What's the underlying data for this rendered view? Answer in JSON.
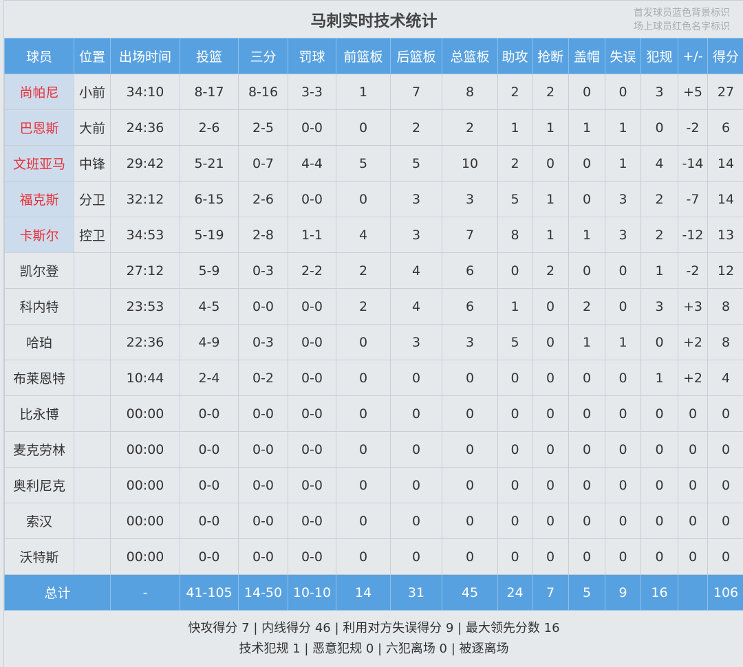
{
  "title": "马刺实时技术统计",
  "legend": [
    "首发球员蓝色背景标识",
    "场上球员红色名字标识"
  ],
  "colors": {
    "header_bg": "#58a1e0",
    "starter_bg": "#cddcec",
    "oncourt_name": "#e8323c"
  },
  "columns": [
    "球员",
    "位置",
    "出场时间",
    "投篮",
    "三分",
    "罚球",
    "前篮板",
    "后篮板",
    "总篮板",
    "助攻",
    "抢断",
    "盖帽",
    "失误",
    "犯规",
    "+/-",
    "得分"
  ],
  "players": [
    {
      "starter": true,
      "oncourt": true,
      "cells": [
        "尚帕尼",
        "小前",
        "34:10",
        "8-17",
        "8-16",
        "3-3",
        "1",
        "7",
        "8",
        "2",
        "2",
        "0",
        "0",
        "3",
        "+5",
        "27"
      ]
    },
    {
      "starter": true,
      "oncourt": true,
      "cells": [
        "巴恩斯",
        "大前",
        "24:36",
        "2-6",
        "2-5",
        "0-0",
        "0",
        "2",
        "2",
        "1",
        "1",
        "1",
        "1",
        "0",
        "-2",
        "6"
      ]
    },
    {
      "starter": true,
      "oncourt": true,
      "cells": [
        "文班亚马",
        "中锋",
        "29:42",
        "5-21",
        "0-7",
        "4-4",
        "5",
        "5",
        "10",
        "2",
        "0",
        "0",
        "1",
        "4",
        "-14",
        "14"
      ]
    },
    {
      "starter": true,
      "oncourt": true,
      "cells": [
        "福克斯",
        "分卫",
        "32:12",
        "6-15",
        "2-6",
        "0-0",
        "0",
        "3",
        "3",
        "5",
        "1",
        "0",
        "3",
        "2",
        "-7",
        "14"
      ]
    },
    {
      "starter": true,
      "oncourt": true,
      "cells": [
        "卡斯尔",
        "控卫",
        "34:53",
        "5-19",
        "2-8",
        "1-1",
        "4",
        "3",
        "7",
        "8",
        "1",
        "1",
        "3",
        "2",
        "-12",
        "13"
      ]
    },
    {
      "starter": false,
      "oncourt": false,
      "cells": [
        "凯尔登",
        "",
        "27:12",
        "5-9",
        "0-3",
        "2-2",
        "2",
        "4",
        "6",
        "0",
        "2",
        "0",
        "0",
        "1",
        "-2",
        "12"
      ]
    },
    {
      "starter": false,
      "oncourt": false,
      "cells": [
        "科内特",
        "",
        "23:53",
        "4-5",
        "0-0",
        "0-0",
        "2",
        "4",
        "6",
        "1",
        "0",
        "2",
        "0",
        "3",
        "+3",
        "8"
      ]
    },
    {
      "starter": false,
      "oncourt": false,
      "cells": [
        "哈珀",
        "",
        "22:36",
        "4-9",
        "0-3",
        "0-0",
        "0",
        "3",
        "3",
        "5",
        "0",
        "1",
        "1",
        "0",
        "+2",
        "8"
      ]
    },
    {
      "starter": false,
      "oncourt": false,
      "cells": [
        "布莱恩特",
        "",
        "10:44",
        "2-4",
        "0-2",
        "0-0",
        "0",
        "0",
        "0",
        "0",
        "0",
        "0",
        "0",
        "1",
        "+2",
        "4"
      ]
    },
    {
      "starter": false,
      "oncourt": false,
      "cells": [
        "比永博",
        "",
        "00:00",
        "0-0",
        "0-0",
        "0-0",
        "0",
        "0",
        "0",
        "0",
        "0",
        "0",
        "0",
        "0",
        "0",
        "0"
      ]
    },
    {
      "starter": false,
      "oncourt": false,
      "cells": [
        "麦克劳林",
        "",
        "00:00",
        "0-0",
        "0-0",
        "0-0",
        "0",
        "0",
        "0",
        "0",
        "0",
        "0",
        "0",
        "0",
        "0",
        "0"
      ]
    },
    {
      "starter": false,
      "oncourt": false,
      "cells": [
        "奥利尼克",
        "",
        "00:00",
        "0-0",
        "0-0",
        "0-0",
        "0",
        "0",
        "0",
        "0",
        "0",
        "0",
        "0",
        "0",
        "0",
        "0"
      ]
    },
    {
      "starter": false,
      "oncourt": false,
      "cells": [
        "索汉",
        "",
        "00:00",
        "0-0",
        "0-0",
        "0-0",
        "0",
        "0",
        "0",
        "0",
        "0",
        "0",
        "0",
        "0",
        "0",
        "0"
      ]
    },
    {
      "starter": false,
      "oncourt": false,
      "cells": [
        "沃特斯",
        "",
        "00:00",
        "0-0",
        "0-0",
        "0-0",
        "0",
        "0",
        "0",
        "0",
        "0",
        "0",
        "0",
        "0",
        "0",
        "0"
      ]
    }
  ],
  "totals": {
    "label": "总计",
    "cells": [
      "-",
      "41-105",
      "14-50",
      "10-10",
      "14",
      "31",
      "45",
      "24",
      "7",
      "5",
      "9",
      "16",
      "",
      "106"
    ]
  },
  "footer": [
    "快攻得分 7 | 内线得分 46 | 利用对方失误得分 9 | 最大领先分数 16",
    "技术犯规 1 | 恶意犯规 0 | 六犯离场 0 | 被逐离场"
  ]
}
